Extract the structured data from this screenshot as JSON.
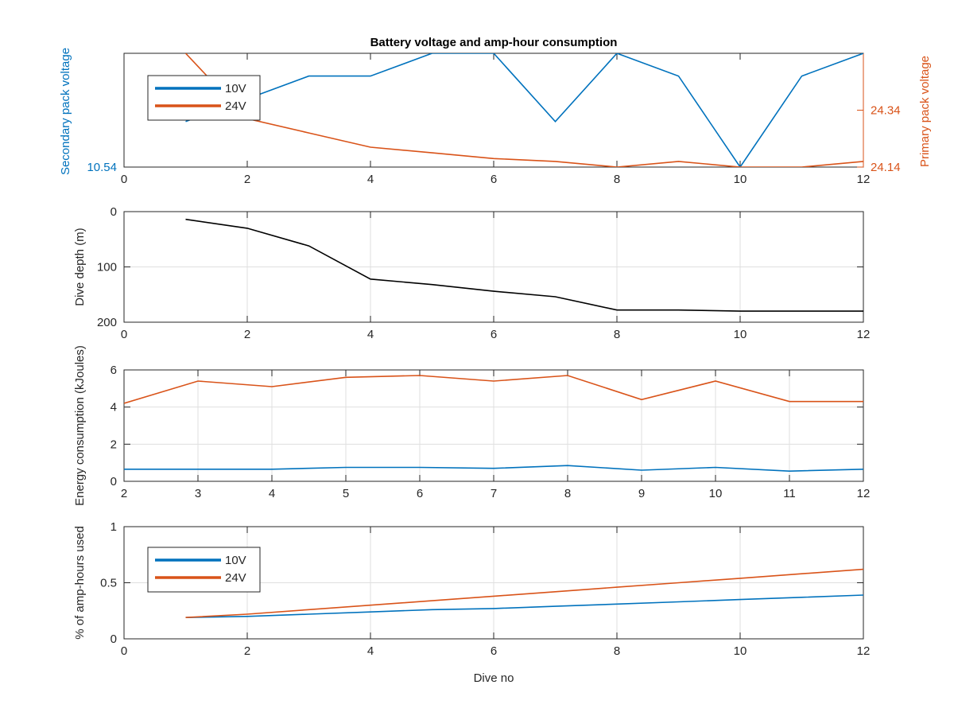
{
  "chart_data": [
    {
      "type": "line",
      "title": "Battery voltage and amp-hour consumption",
      "xlim": [
        0,
        12
      ],
      "x_ticks": [
        "0",
        "2",
        "4",
        "6",
        "8",
        "10",
        "12"
      ],
      "ylabel_left": "Secondary pack voltage",
      "ylabel_right": "Primary pack voltage",
      "ylim_left": [
        10.54,
        10.59
      ],
      "ylim_right": [
        24.14,
        24.54
      ],
      "yticks_left": [
        {
          "value": 10.54,
          "label": "10.54"
        }
      ],
      "yticks_right": [
        {
          "value": 24.14,
          "label": "24.14"
        },
        {
          "value": 24.34,
          "label": "24.34"
        }
      ],
      "grid": false,
      "legend": "top-left",
      "series": [
        {
          "name": "10V",
          "axis": "left",
          "color": "#0072BD",
          "x": [
            1,
            2,
            3,
            4,
            5,
            6,
            7,
            8,
            9,
            10,
            11,
            12
          ],
          "y": [
            10.56,
            10.57,
            10.58,
            10.58,
            10.59,
            10.59,
            10.56,
            10.59,
            10.58,
            10.54,
            10.58,
            10.59
          ]
        },
        {
          "name": "24V",
          "axis": "right",
          "color": "#D95319",
          "x": [
            1,
            2,
            3,
            4,
            5,
            6,
            7,
            8,
            9,
            10,
            11,
            12
          ],
          "y": [
            24.54,
            24.31,
            24.26,
            24.21,
            24.19,
            24.17,
            24.16,
            24.14,
            24.16,
            24.14,
            24.14,
            24.16
          ]
        }
      ]
    },
    {
      "type": "line",
      "xlim": [
        0,
        12
      ],
      "x_ticks": [
        "0",
        "2",
        "4",
        "6",
        "8",
        "10",
        "12"
      ],
      "ylabel": "Dive depth (m)",
      "ylim": [
        0,
        200
      ],
      "y_reversed": true,
      "yticks": [
        {
          "value": 0,
          "label": "0"
        },
        {
          "value": 100,
          "label": "100"
        },
        {
          "value": 200,
          "label": "200"
        }
      ],
      "grid": true,
      "series": [
        {
          "color": "#000000",
          "x": [
            1,
            2,
            3,
            4,
            5,
            6,
            7,
            8,
            9,
            10,
            11,
            12
          ],
          "y": [
            14,
            30,
            62,
            122,
            132,
            144,
            154,
            178,
            178,
            180,
            180,
            180
          ]
        }
      ]
    },
    {
      "type": "line",
      "xlim": [
        2,
        12
      ],
      "x_ticks": [
        "2",
        "3",
        "4",
        "5",
        "6",
        "7",
        "8",
        "9",
        "10",
        "11",
        "12"
      ],
      "ylabel": "Energy consumption (kJoules)",
      "ylim": [
        0,
        6
      ],
      "yticks": [
        {
          "value": 0,
          "label": "0"
        },
        {
          "value": 2,
          "label": "2"
        },
        {
          "value": 4,
          "label": "4"
        },
        {
          "value": 6,
          "label": "6"
        }
      ],
      "grid": true,
      "series": [
        {
          "color": "#0072BD",
          "x": [
            2,
            3,
            4,
            5,
            6,
            7,
            8,
            9,
            10,
            11,
            12
          ],
          "y": [
            0.65,
            0.65,
            0.65,
            0.75,
            0.75,
            0.7,
            0.85,
            0.6,
            0.75,
            0.55,
            0.65
          ]
        },
        {
          "color": "#D95319",
          "x": [
            2,
            3,
            4,
            5,
            6,
            7,
            8,
            9,
            10,
            11,
            12
          ],
          "y": [
            4.2,
            5.4,
            5.1,
            5.6,
            5.7,
            5.4,
            5.7,
            4.4,
            5.4,
            4.3,
            4.3
          ]
        }
      ]
    },
    {
      "type": "line",
      "xlim": [
        0,
        12
      ],
      "x_ticks": [
        "0",
        "2",
        "4",
        "6",
        "8",
        "10",
        "12"
      ],
      "xlabel": "Dive no",
      "ylabel": "% of amp-hours used",
      "ylim": [
        0,
        1
      ],
      "yticks": [
        {
          "value": 0,
          "label": "0"
        },
        {
          "value": 0.5,
          "label": "0.5"
        },
        {
          "value": 1,
          "label": "1"
        }
      ],
      "grid": true,
      "legend": "left",
      "series": [
        {
          "name": "10V",
          "color": "#0072BD",
          "x": [
            1,
            2,
            3,
            4,
            5,
            6,
            7,
            8,
            9,
            10,
            11,
            12
          ],
          "y": [
            0.19,
            0.2,
            0.22,
            0.24,
            0.26,
            0.27,
            0.29,
            0.31,
            0.33,
            0.35,
            0.37,
            0.39
          ]
        },
        {
          "name": "24V",
          "color": "#D95319",
          "x": [
            1,
            2,
            3,
            4,
            5,
            6,
            7,
            8,
            9,
            10,
            11,
            12
          ],
          "y": [
            0.19,
            0.22,
            0.26,
            0.3,
            0.34,
            0.38,
            0.42,
            0.46,
            0.5,
            0.54,
            0.58,
            0.62
          ]
        }
      ]
    }
  ]
}
